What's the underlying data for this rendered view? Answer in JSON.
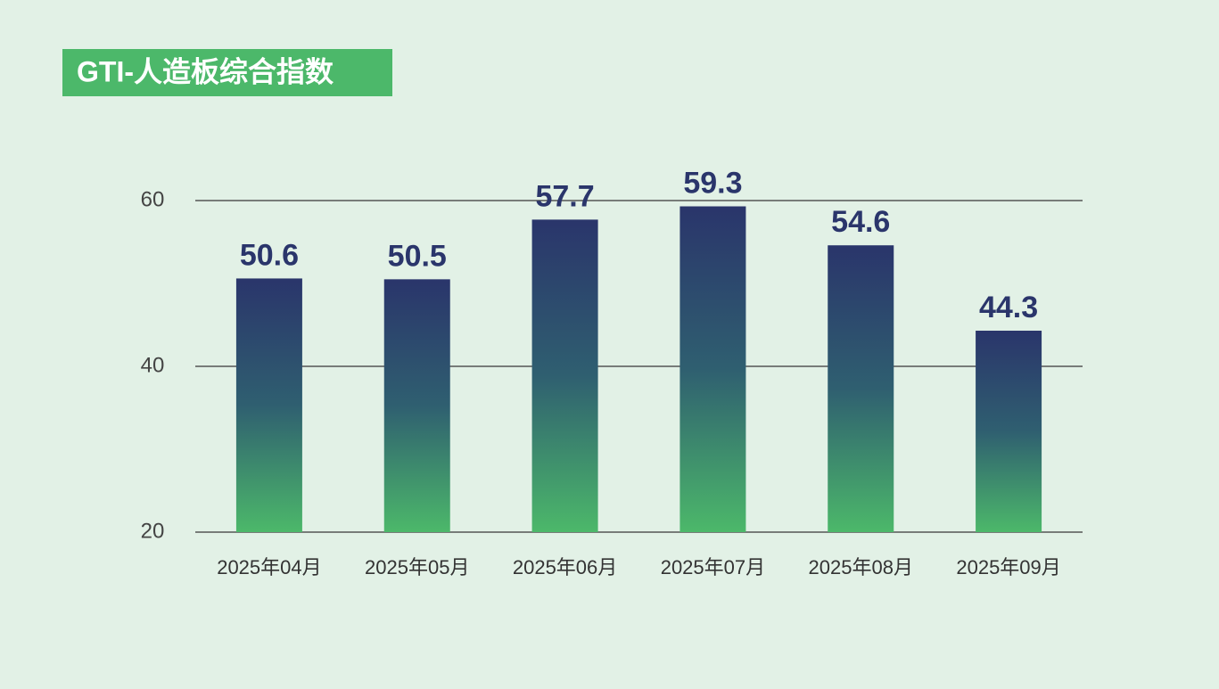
{
  "chart_data": {
    "type": "bar",
    "title": "GTI-人造板综合指数",
    "categories": [
      "2025年04月",
      "2025年05月",
      "2025年06月",
      "2025年07月",
      "2025年08月",
      "2025年09月"
    ],
    "values": [
      50.6,
      50.5,
      57.7,
      59.3,
      54.6,
      44.3
    ],
    "ylim": [
      20,
      60
    ],
    "yticks": [
      20,
      40,
      60
    ],
    "grid": true
  }
}
